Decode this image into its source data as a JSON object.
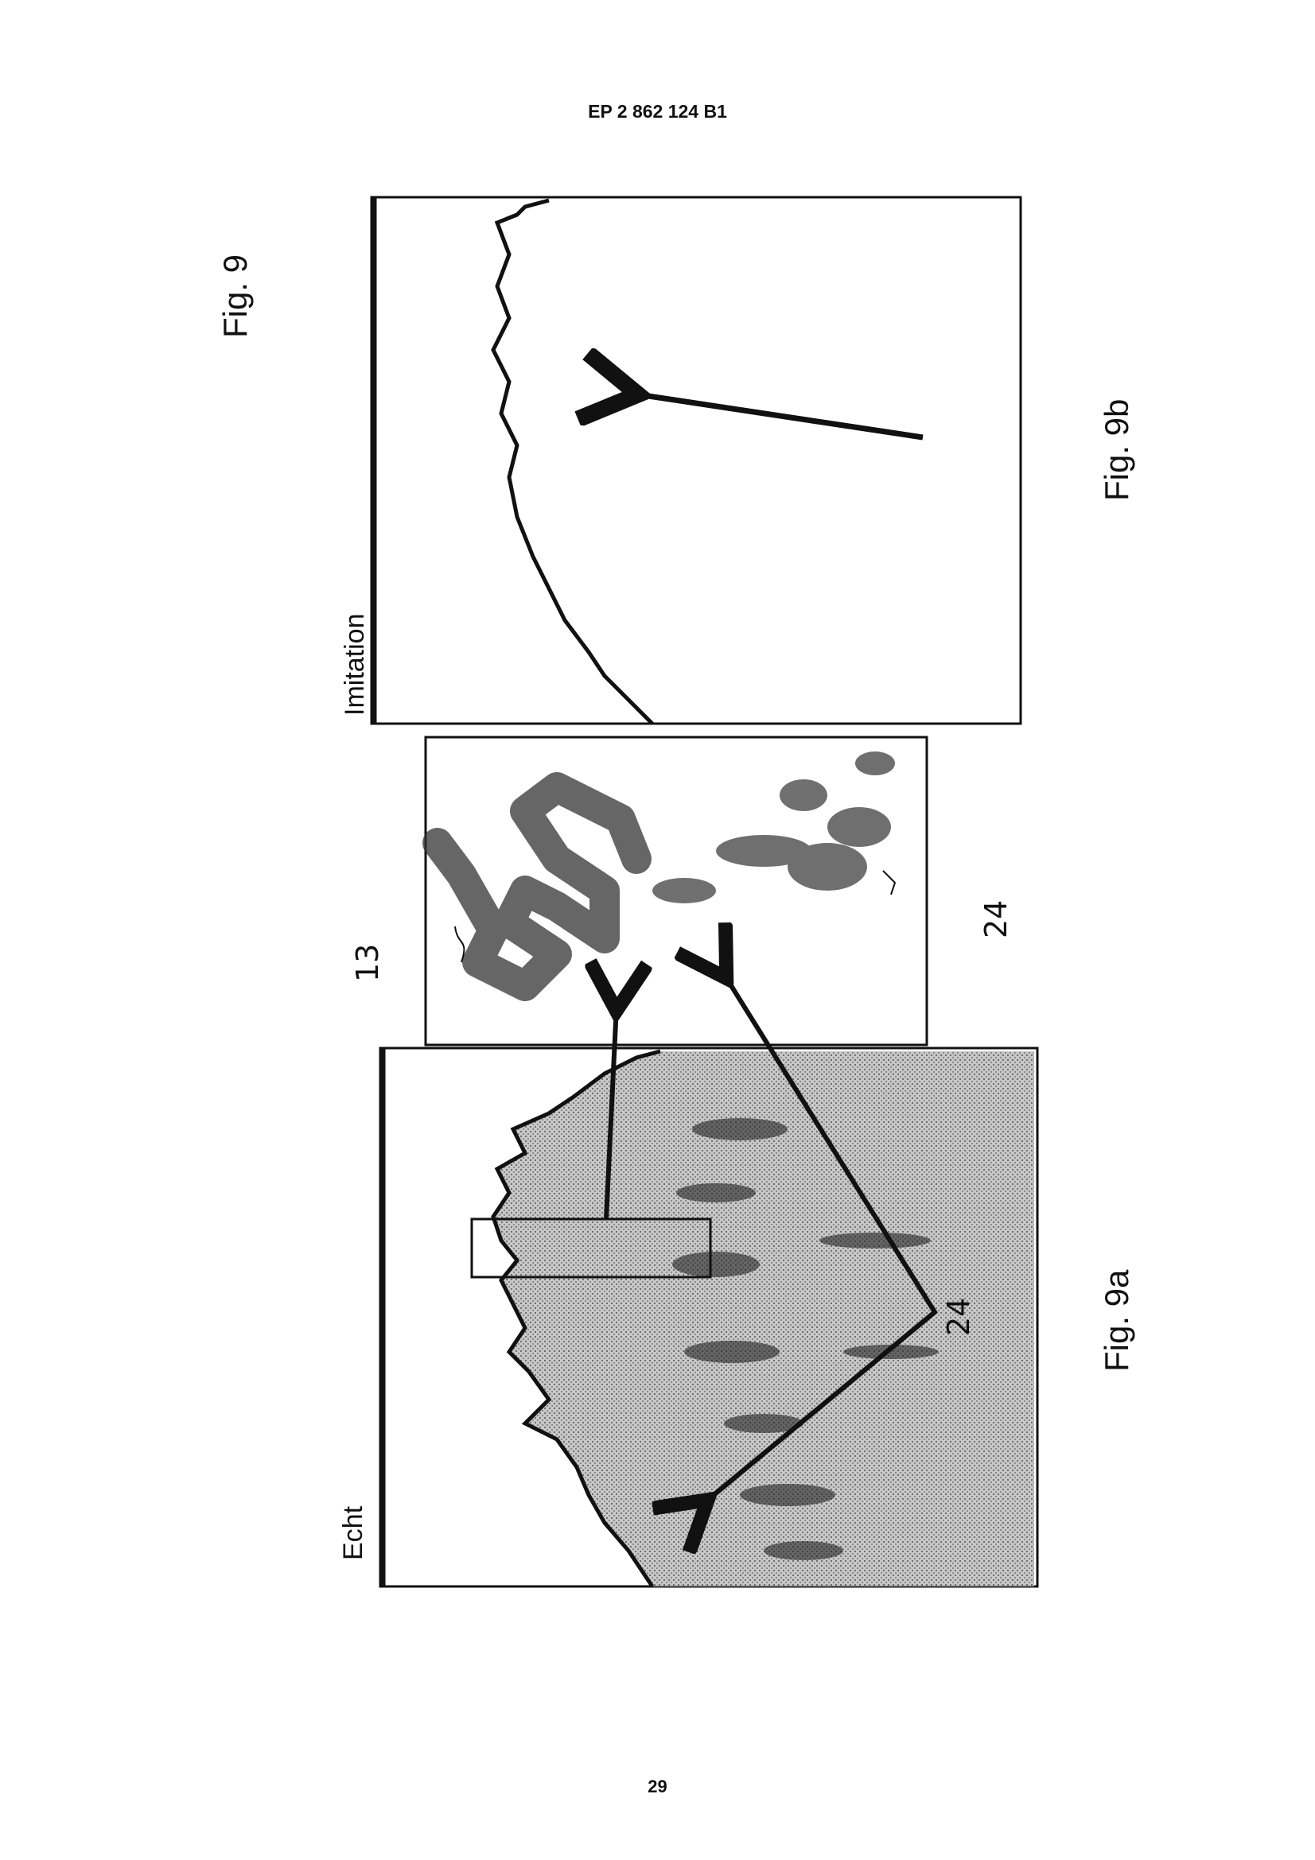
{
  "header": {
    "doc_number": "EP 2 862 124 B1"
  },
  "figure": {
    "title": "Fig. 9",
    "left_panel": {
      "label": "Echt",
      "caption": "Fig. 9a",
      "ref": "24"
    },
    "middle_panel": {
      "ref_13": "13",
      "ref_24": "24"
    },
    "right_panel": {
      "label": "Imitation",
      "caption": "Fig. 9b"
    }
  },
  "footer": {
    "page_number": "29"
  }
}
